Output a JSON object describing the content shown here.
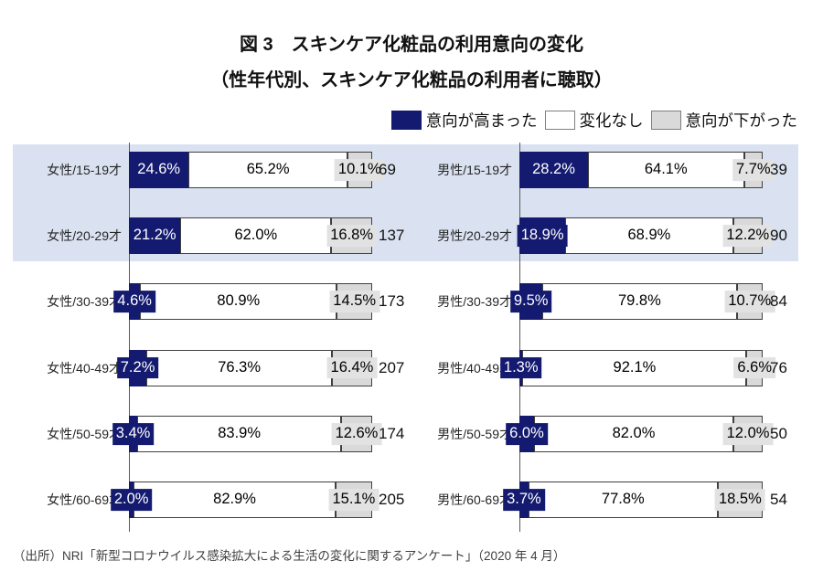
{
  "title": {
    "line1": "図 3　スキンケア化粧品の利用意向の変化",
    "line2": "（性年代別、スキンケア化粧品の利用者に聴取）"
  },
  "legend": [
    {
      "label": "意向が高まった",
      "color": "#131a70"
    },
    {
      "label": "変化なし",
      "color": "#ffffff"
    },
    {
      "label": "意向が下がった",
      "color": "#d9d9d9"
    }
  ],
  "source": "（出所）NRI「新型コロナウイルス感染拡大による生活の変化に関するアンケート」（2020 年 4 月）",
  "colors": {
    "intent_up": "#131a70",
    "no_change": "#ffffff",
    "intent_down": "#d9d9d9",
    "highlight_band": "#dae2f1",
    "segment_border": "#404040",
    "axis": "#595959"
  },
  "chart_data": {
    "type": "bar",
    "orientation": "horizontal",
    "stacked": true,
    "unit": "%",
    "xlim": [
      0,
      100
    ],
    "series_names": [
      "意向が高まった",
      "変化なし",
      "意向が下がった"
    ],
    "highlighted_age_groups": [
      "15-19才",
      "20-29才"
    ],
    "left": {
      "group": "女性",
      "rows": [
        {
          "label": "女性/15-19才",
          "values": [
            24.6,
            65.2,
            10.1
          ],
          "n": 69
        },
        {
          "label": "女性/20-29才",
          "values": [
            21.2,
            62.0,
            16.8
          ],
          "n": 137
        },
        {
          "label": "女性/30-39才",
          "values": [
            4.6,
            80.9,
            14.5
          ],
          "n": 173
        },
        {
          "label": "女性/40-49才",
          "values": [
            7.2,
            76.3,
            16.4
          ],
          "n": 207
        },
        {
          "label": "女性/50-59才",
          "values": [
            3.4,
            83.9,
            12.6
          ],
          "n": 174
        },
        {
          "label": "女性/60-69才",
          "values": [
            2.0,
            82.9,
            15.1
          ],
          "n": 205
        }
      ]
    },
    "right": {
      "group": "男性",
      "rows": [
        {
          "label": "男性/15-19才",
          "values": [
            28.2,
            64.1,
            7.7
          ],
          "n": 39
        },
        {
          "label": "男性/20-29才",
          "values": [
            18.9,
            68.9,
            12.2
          ],
          "n": 90
        },
        {
          "label": "男性/30-39才",
          "values": [
            9.5,
            79.8,
            10.7
          ],
          "n": 84
        },
        {
          "label": "男性/40-49才",
          "values": [
            1.3,
            92.1,
            6.6
          ],
          "n": 76
        },
        {
          "label": "男性/50-59才",
          "values": [
            6.0,
            82.0,
            12.0
          ],
          "n": 50
        },
        {
          "label": "男性/60-69才",
          "values": [
            3.7,
            77.8,
            18.5
          ],
          "n": 54
        }
      ]
    }
  }
}
